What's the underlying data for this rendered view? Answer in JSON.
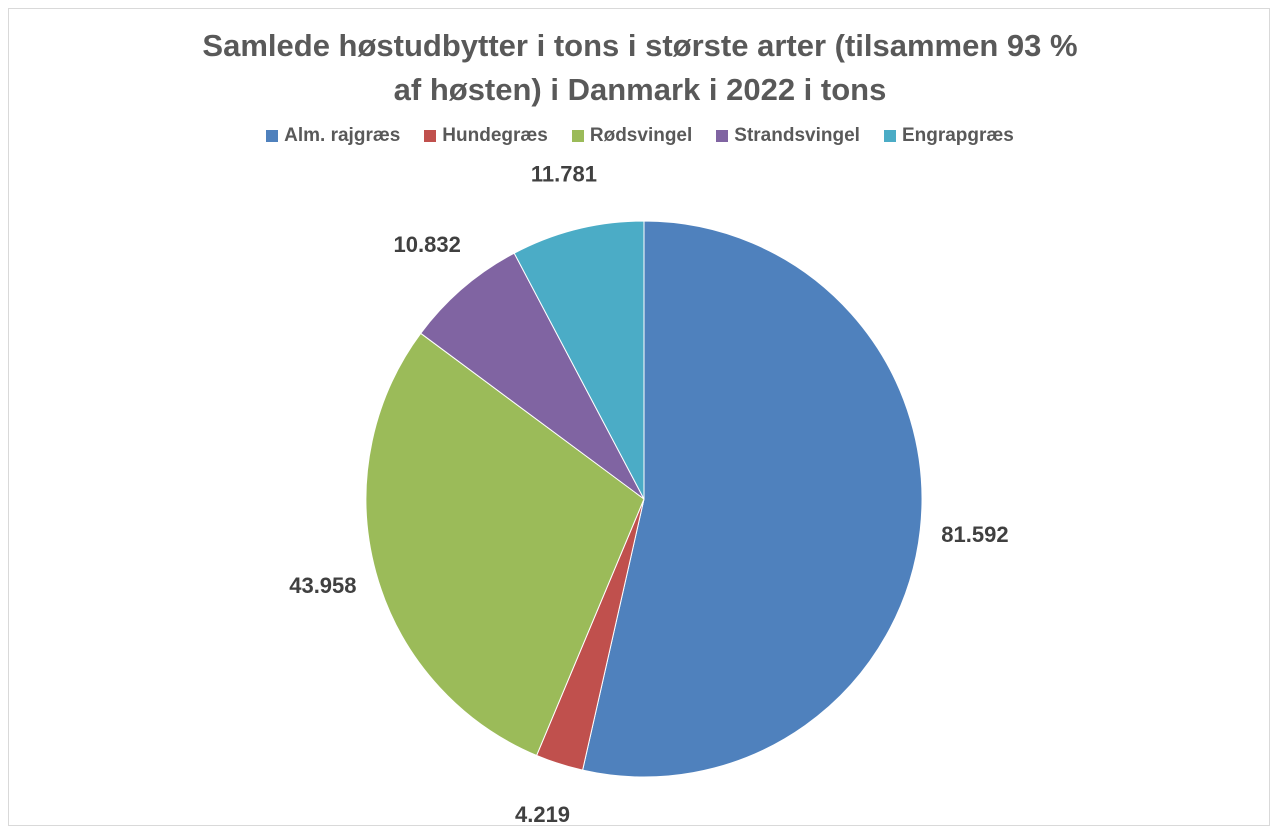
{
  "chart_data": {
    "type": "pie",
    "title": "Samlede høstudbytter i tons i største arter (tilsammen 93 % af høsten) i Danmark i 2022 i tons",
    "categories": [
      "Alm. rajgræs",
      "Hundegræs",
      "Rødsvingel",
      "Strandsvingel",
      "Engrapgræs"
    ],
    "values": [
      81592,
      4219,
      43958,
      10832,
      11781
    ],
    "value_labels": [
      "81.592",
      "4.219",
      "43.958",
      "10.832",
      "11.781"
    ],
    "colors": [
      "#4f81bd",
      "#c0504d",
      "#9bbb59",
      "#8064a2",
      "#4bacc6"
    ],
    "legend": "top"
  }
}
